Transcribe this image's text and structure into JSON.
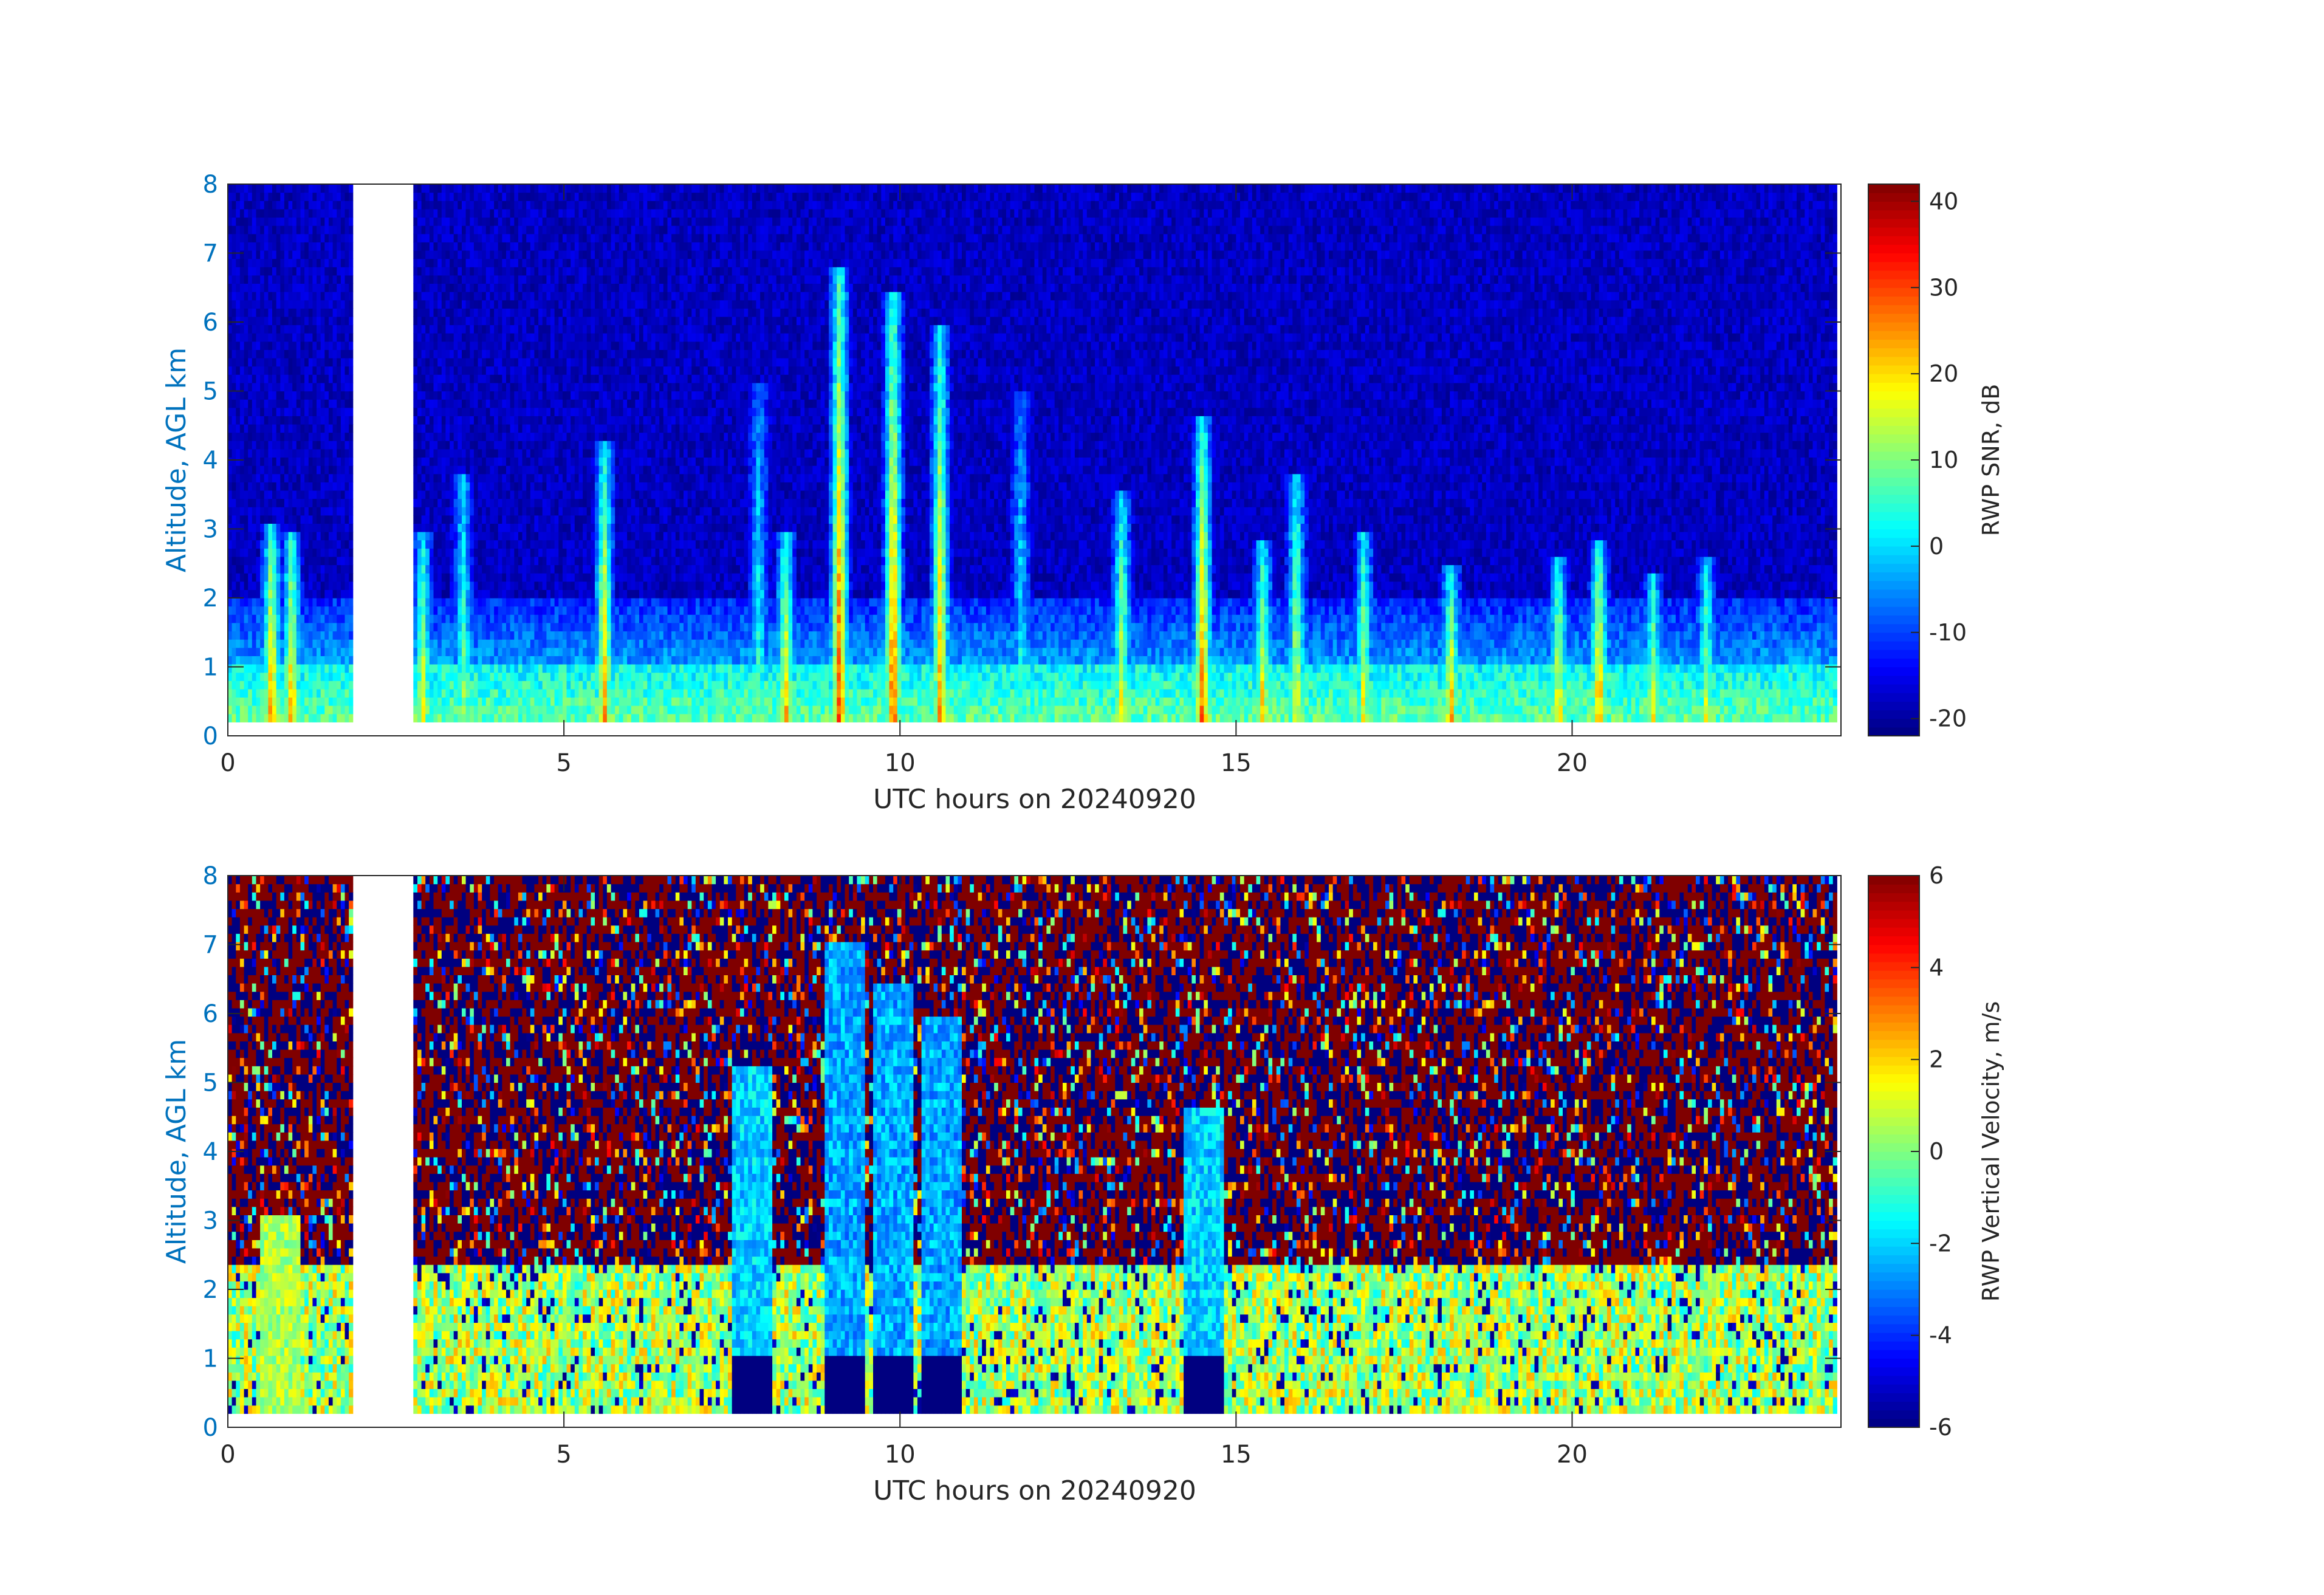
{
  "chart_data": [
    {
      "type": "heatmap",
      "xlabel": "UTC hours on 20240920",
      "ylabel": "Altitude, AGL km",
      "colorbar_label": "RWP SNR, dB",
      "xlim": [
        0,
        24
      ],
      "ylim": [
        0,
        8
      ],
      "x_ticks": [
        0,
        5,
        10,
        15,
        20
      ],
      "y_ticks": [
        0,
        1,
        2,
        3,
        4,
        5,
        6,
        7,
        8
      ],
      "clim": [
        -22,
        42
      ],
      "colorbar_ticks": [
        -20,
        -10,
        0,
        10,
        20,
        30,
        40
      ],
      "colormap": "jet",
      "data_gap_hours": [
        1.85,
        2.75
      ],
      "lowest_range_gate_km": 0.2,
      "background_value": -18,
      "boundary_layer_top_km": 1.0,
      "convective_columns": [
        {
          "center_hour": 0.65,
          "top_km": 3.1,
          "peak_value": 32
        },
        {
          "center_hour": 0.95,
          "top_km": 3.0,
          "peak_value": 30
        },
        {
          "center_hour": 2.9,
          "top_km": 3.0,
          "peak_value": 22
        },
        {
          "center_hour": 3.5,
          "top_km": 3.8,
          "peak_value": 15
        },
        {
          "center_hour": 5.6,
          "top_km": 4.3,
          "peak_value": 28
        },
        {
          "center_hour": 7.9,
          "top_km": 5.1,
          "peak_value": 8
        },
        {
          "center_hour": 8.3,
          "top_km": 3.0,
          "peak_value": 28
        },
        {
          "center_hour": 9.1,
          "top_km": 6.8,
          "peak_value": 34
        },
        {
          "center_hour": 9.9,
          "top_km": 6.5,
          "peak_value": 34
        },
        {
          "center_hour": 10.6,
          "top_km": 6.0,
          "peak_value": 28
        },
        {
          "center_hour": 11.8,
          "top_km": 5.0,
          "peak_value": 6
        },
        {
          "center_hour": 13.3,
          "top_km": 3.6,
          "peak_value": 22
        },
        {
          "center_hour": 14.5,
          "top_km": 4.6,
          "peak_value": 32
        },
        {
          "center_hour": 15.4,
          "top_km": 2.8,
          "peak_value": 26
        },
        {
          "center_hour": 15.9,
          "top_km": 3.8,
          "peak_value": 22
        },
        {
          "center_hour": 16.9,
          "top_km": 3.0,
          "peak_value": 22
        },
        {
          "center_hour": 18.2,
          "top_km": 2.5,
          "peak_value": 28
        },
        {
          "center_hour": 19.8,
          "top_km": 2.6,
          "peak_value": 26
        },
        {
          "center_hour": 20.4,
          "top_km": 2.8,
          "peak_value": 32
        },
        {
          "center_hour": 21.2,
          "top_km": 2.4,
          "peak_value": 22
        },
        {
          "center_hour": 22.0,
          "top_km": 2.6,
          "peak_value": 20
        }
      ]
    },
    {
      "type": "heatmap",
      "xlabel": "UTC hours on 20240920",
      "ylabel": "Altitude, AGL km",
      "colorbar_label": "RWP Vertical Velocity, m/s",
      "xlim": [
        0,
        24
      ],
      "ylim": [
        0,
        8
      ],
      "x_ticks": [
        0,
        5,
        10,
        15,
        20
      ],
      "y_ticks": [
        0,
        1,
        2,
        3,
        4,
        5,
        6,
        7,
        8
      ],
      "clim": [
        -6,
        6
      ],
      "colorbar_ticks": [
        -6,
        -4,
        -2,
        0,
        2,
        4,
        6
      ],
      "colormap": "jet",
      "data_gap_hours": [
        1.85,
        2.75
      ],
      "lowest_range_gate_km": 0.2,
      "noise_region_above_km": 2.4,
      "low_level_mean_value": 0.5,
      "precipitation_columns": [
        {
          "center_hour": 9.2,
          "top_km": 7.0,
          "value": -2.5
        },
        {
          "center_hour": 9.9,
          "top_km": 6.5,
          "value": -2.5
        },
        {
          "center_hour": 10.6,
          "top_km": 6.0,
          "value": -2.5
        },
        {
          "center_hour": 7.8,
          "top_km": 5.2,
          "value": -2.0
        },
        {
          "center_hour": 14.5,
          "top_km": 4.6,
          "value": -2.0
        },
        {
          "center_hour": 0.8,
          "top_km": 3.1,
          "value": 0.5
        }
      ]
    }
  ]
}
